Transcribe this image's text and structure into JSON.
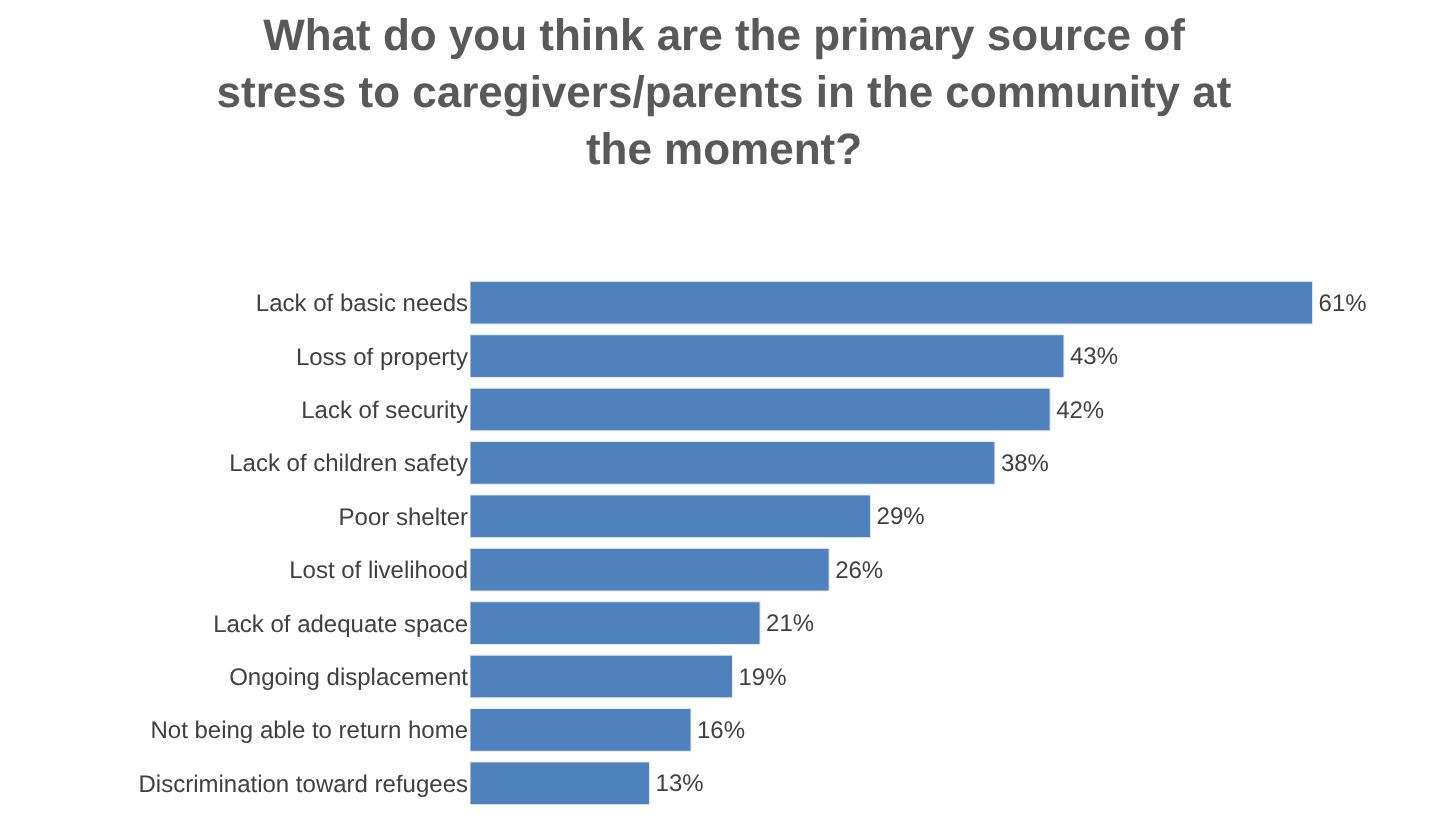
{
  "chart_data": {
    "type": "bar",
    "orientation": "horizontal",
    "title": "What do you think are the primary source of\nstress to caregivers/parents in the community at\nthe moment?",
    "categories": [
      "Lack of basic needs",
      "Loss of property",
      "Lack of security",
      "Lack of children safety",
      "Poor shelter",
      "Lost of livelihood",
      "Lack of adequate space",
      "Ongoing displacement",
      "Not being able to return home",
      "Discrimination toward refugees"
    ],
    "values": [
      61,
      43,
      42,
      38,
      29,
      26,
      21,
      19,
      16,
      13
    ],
    "value_labels": [
      "61%",
      "43%",
      "42%",
      "38%",
      "29%",
      "26%",
      "21%",
      "19%",
      "16%",
      "13%"
    ],
    "color": "#4f81bd",
    "tick_labels": "y",
    "legend": false
  }
}
